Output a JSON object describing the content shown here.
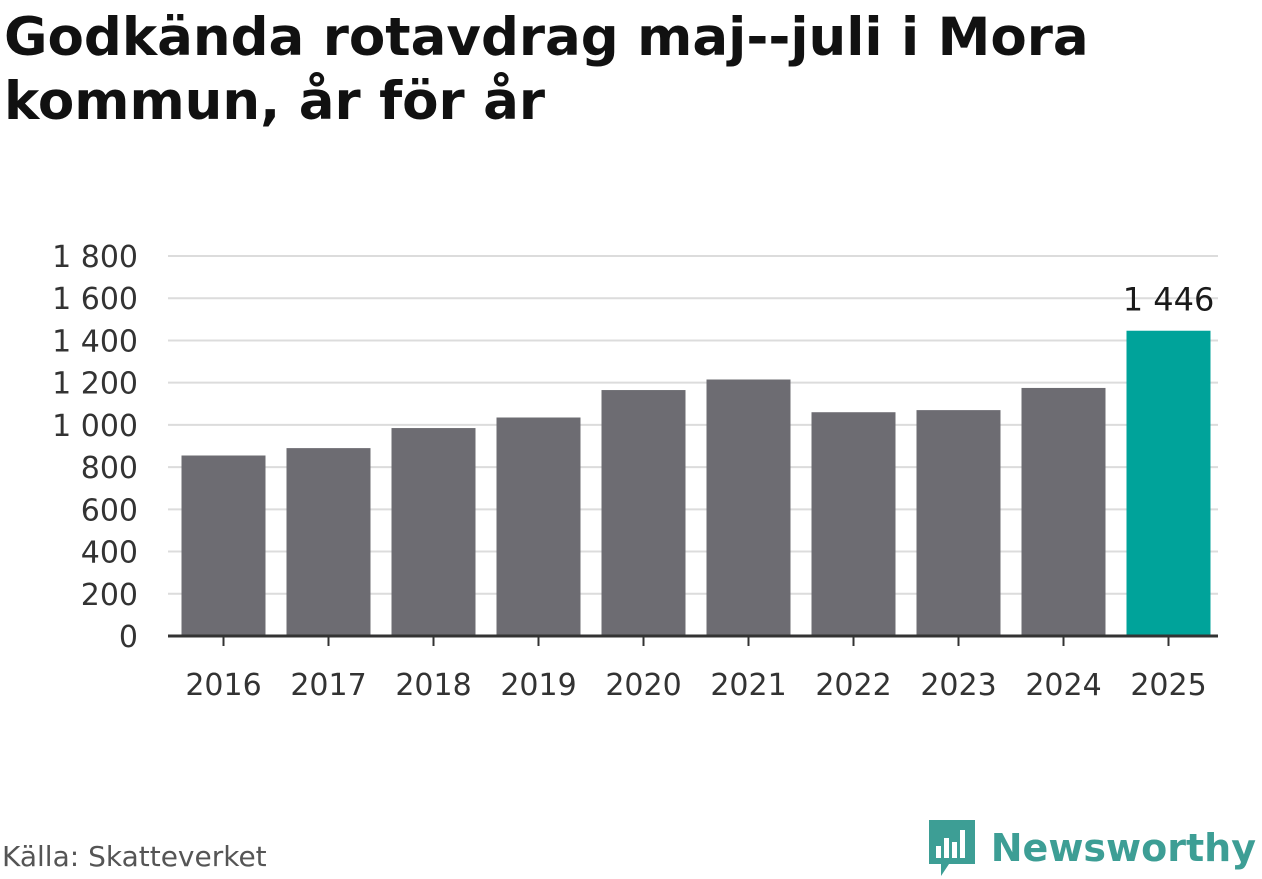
{
  "header": {
    "title": "Godkända rotavdrag maj--juli i Mora kommun, år för år"
  },
  "footer": {
    "source": "Källa: Skatteverket",
    "brand": "Newsworthy"
  },
  "colors": {
    "bar": "#6d6c72",
    "highlight": "#00a39a",
    "grid": "#dcdcdc",
    "axis": "#333333",
    "brand": "#3d9e95"
  },
  "icons": {
    "brand_logo": "bar-chart-speech-bubble-icon"
  },
  "chart_data": {
    "type": "bar",
    "title": "Godkända rotavdrag maj--juli i Mora kommun, år för år",
    "xlabel": "",
    "ylabel": "",
    "categories": [
      "2016",
      "2017",
      "2018",
      "2019",
      "2020",
      "2021",
      "2022",
      "2023",
      "2024",
      "2025"
    ],
    "values": [
      855,
      890,
      985,
      1035,
      1165,
      1215,
      1060,
      1070,
      1175,
      1446
    ],
    "highlight_index": 9,
    "data_labels": [
      {
        "index": 9,
        "text": "1 446"
      }
    ],
    "ylim": [
      0,
      1800
    ],
    "yticks": [
      0,
      200,
      400,
      600,
      800,
      1000,
      1200,
      1400,
      1600,
      1800
    ],
    "ytick_labels": [
      "0",
      "200",
      "400",
      "600",
      "800",
      "1 000",
      "1 200",
      "1 400",
      "1 600",
      "1 800"
    ],
    "grid": true,
    "legend": "none"
  }
}
